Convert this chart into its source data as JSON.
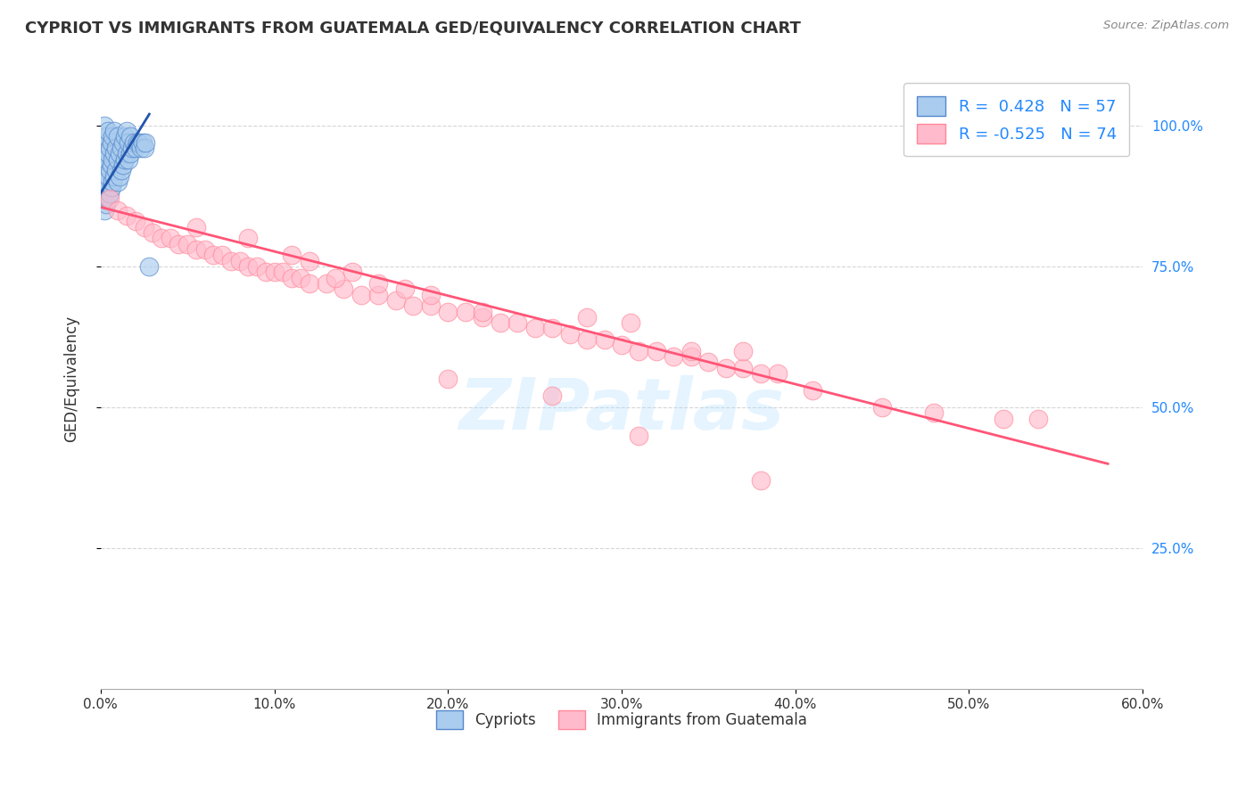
{
  "title": "CYPRIOT VS IMMIGRANTS FROM GUATEMALA GED/EQUIVALENCY CORRELATION CHART",
  "source": "Source: ZipAtlas.com",
  "ylabel": "GED/Equivalency",
  "xlim": [
    0.0,
    0.6
  ],
  "ylim": [
    0.0,
    1.1
  ],
  "xtick_labels": [
    "0.0%",
    "10.0%",
    "20.0%",
    "30.0%",
    "40.0%",
    "50.0%",
    "60.0%"
  ],
  "xtick_vals": [
    0.0,
    0.1,
    0.2,
    0.3,
    0.4,
    0.5,
    0.6
  ],
  "ytick_labels": [
    "25.0%",
    "50.0%",
    "75.0%",
    "100.0%"
  ],
  "ytick_vals": [
    0.25,
    0.5,
    0.75,
    1.0
  ],
  "legend_label1": "Cypriots",
  "legend_label2": "Immigrants from Guatemala",
  "blue_face": "#AACCEE",
  "blue_edge": "#5588CC",
  "pink_face": "#FFBBCC",
  "pink_edge": "#FF8899",
  "blue_line_color": "#2255AA",
  "pink_line_color": "#FF5577",
  "watermark": "ZIPatlas",
  "background": "#FFFFFF",
  "grid_color": "#CCCCCC",
  "blue_scatter_x": [
    0.001,
    0.001,
    0.001,
    0.002,
    0.002,
    0.002,
    0.002,
    0.002,
    0.003,
    0.003,
    0.003,
    0.003,
    0.004,
    0.004,
    0.004,
    0.004,
    0.005,
    0.005,
    0.005,
    0.006,
    0.006,
    0.006,
    0.007,
    0.007,
    0.007,
    0.008,
    0.008,
    0.008,
    0.009,
    0.009,
    0.01,
    0.01,
    0.01,
    0.011,
    0.011,
    0.012,
    0.012,
    0.013,
    0.013,
    0.014,
    0.014,
    0.015,
    0.015,
    0.016,
    0.016,
    0.017,
    0.017,
    0.018,
    0.019,
    0.02,
    0.021,
    0.022,
    0.023,
    0.024,
    0.025,
    0.026,
    0.028
  ],
  "blue_scatter_y": [
    0.88,
    0.92,
    0.96,
    0.85,
    0.89,
    0.93,
    0.97,
    1.0,
    0.86,
    0.9,
    0.94,
    0.98,
    0.87,
    0.91,
    0.95,
    0.99,
    0.88,
    0.92,
    0.96,
    0.89,
    0.93,
    0.97,
    0.9,
    0.94,
    0.98,
    0.91,
    0.95,
    0.99,
    0.92,
    0.96,
    0.9,
    0.94,
    0.98,
    0.91,
    0.95,
    0.92,
    0.96,
    0.93,
    0.97,
    0.94,
    0.98,
    0.95,
    0.99,
    0.94,
    0.97,
    0.95,
    0.98,
    0.96,
    0.97,
    0.96,
    0.97,
    0.97,
    0.96,
    0.97,
    0.96,
    0.97,
    0.75
  ],
  "pink_scatter_x": [
    0.005,
    0.01,
    0.015,
    0.02,
    0.025,
    0.03,
    0.035,
    0.04,
    0.045,
    0.05,
    0.055,
    0.06,
    0.065,
    0.07,
    0.075,
    0.08,
    0.085,
    0.09,
    0.095,
    0.1,
    0.105,
    0.11,
    0.115,
    0.12,
    0.13,
    0.14,
    0.15,
    0.16,
    0.17,
    0.18,
    0.19,
    0.2,
    0.21,
    0.22,
    0.23,
    0.24,
    0.25,
    0.26,
    0.27,
    0.28,
    0.29,
    0.3,
    0.31,
    0.32,
    0.33,
    0.34,
    0.35,
    0.36,
    0.37,
    0.38,
    0.12,
    0.145,
    0.175,
    0.055,
    0.085,
    0.11,
    0.135,
    0.305,
    0.16,
    0.19,
    0.22,
    0.34,
    0.28,
    0.37,
    0.39,
    0.41,
    0.45,
    0.48,
    0.54,
    0.52,
    0.2,
    0.26,
    0.31,
    0.38
  ],
  "pink_scatter_y": [
    0.87,
    0.85,
    0.84,
    0.83,
    0.82,
    0.81,
    0.8,
    0.8,
    0.79,
    0.79,
    0.78,
    0.78,
    0.77,
    0.77,
    0.76,
    0.76,
    0.75,
    0.75,
    0.74,
    0.74,
    0.74,
    0.73,
    0.73,
    0.72,
    0.72,
    0.71,
    0.7,
    0.7,
    0.69,
    0.68,
    0.68,
    0.67,
    0.67,
    0.66,
    0.65,
    0.65,
    0.64,
    0.64,
    0.63,
    0.62,
    0.62,
    0.61,
    0.6,
    0.6,
    0.59,
    0.59,
    0.58,
    0.57,
    0.57,
    0.56,
    0.76,
    0.74,
    0.71,
    0.82,
    0.8,
    0.77,
    0.73,
    0.65,
    0.72,
    0.7,
    0.67,
    0.6,
    0.66,
    0.6,
    0.56,
    0.53,
    0.5,
    0.49,
    0.48,
    0.48,
    0.55,
    0.52,
    0.45,
    0.37
  ],
  "pink_line_x0": 0.0,
  "pink_line_y0": 0.855,
  "pink_line_x1": 0.58,
  "pink_line_y1": 0.4,
  "blue_line_x0": 0.0,
  "blue_line_y0": 0.88,
  "blue_line_x1": 0.028,
  "blue_line_y1": 1.02
}
